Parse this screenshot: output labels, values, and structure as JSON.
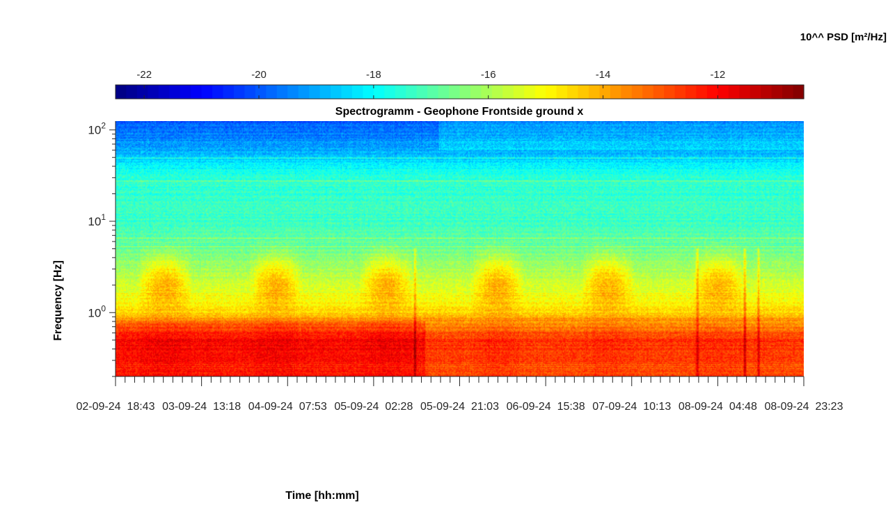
{
  "chart_data": {
    "type": "heatmap",
    "title": "Spectrogramm - Geophone Frontside ground x",
    "xlabel": "Time [hh:mm]",
    "ylabel": "Frequency [Hz]",
    "colorbar": {
      "label": "10^^ PSD [m²/Hz]",
      "range": [
        -22.5,
        -10.5
      ],
      "ticks": [
        -22,
        -20,
        -18,
        -16,
        -14,
        -12
      ],
      "colormap": "jet"
    },
    "yaxis": {
      "scale": "log",
      "range": [
        0.2,
        125
      ],
      "ticks": [
        {
          "mantissa": "10",
          "exponent": "0",
          "value": 1
        },
        {
          "mantissa": "10",
          "exponent": "1",
          "value": 10
        },
        {
          "mantissa": "10",
          "exponent": "2",
          "value": 100
        }
      ]
    },
    "xaxis": {
      "tick_labels": [
        "02-09-24  18:43",
        "03-09-24  13:18",
        "04-09-24  07:53",
        "05-09-24  02:28",
        "05-09-24  21:03",
        "06-09-24  15:38",
        "07-09-24  10:13",
        "08-09-24  04:48",
        "08-09-24  23:23"
      ]
    },
    "description_levels": {
      "freq_bands_hz": [
        0.25,
        0.5,
        0.8,
        1.0,
        2.0,
        5.0,
        10.0,
        30.0,
        80.0,
        120.0
      ],
      "typical_log_psd": [
        -12.5,
        -12.2,
        -13.5,
        -14.5,
        -15.5,
        -16.8,
        -17.3,
        -17.5,
        -19.5,
        -19.8
      ]
    }
  }
}
